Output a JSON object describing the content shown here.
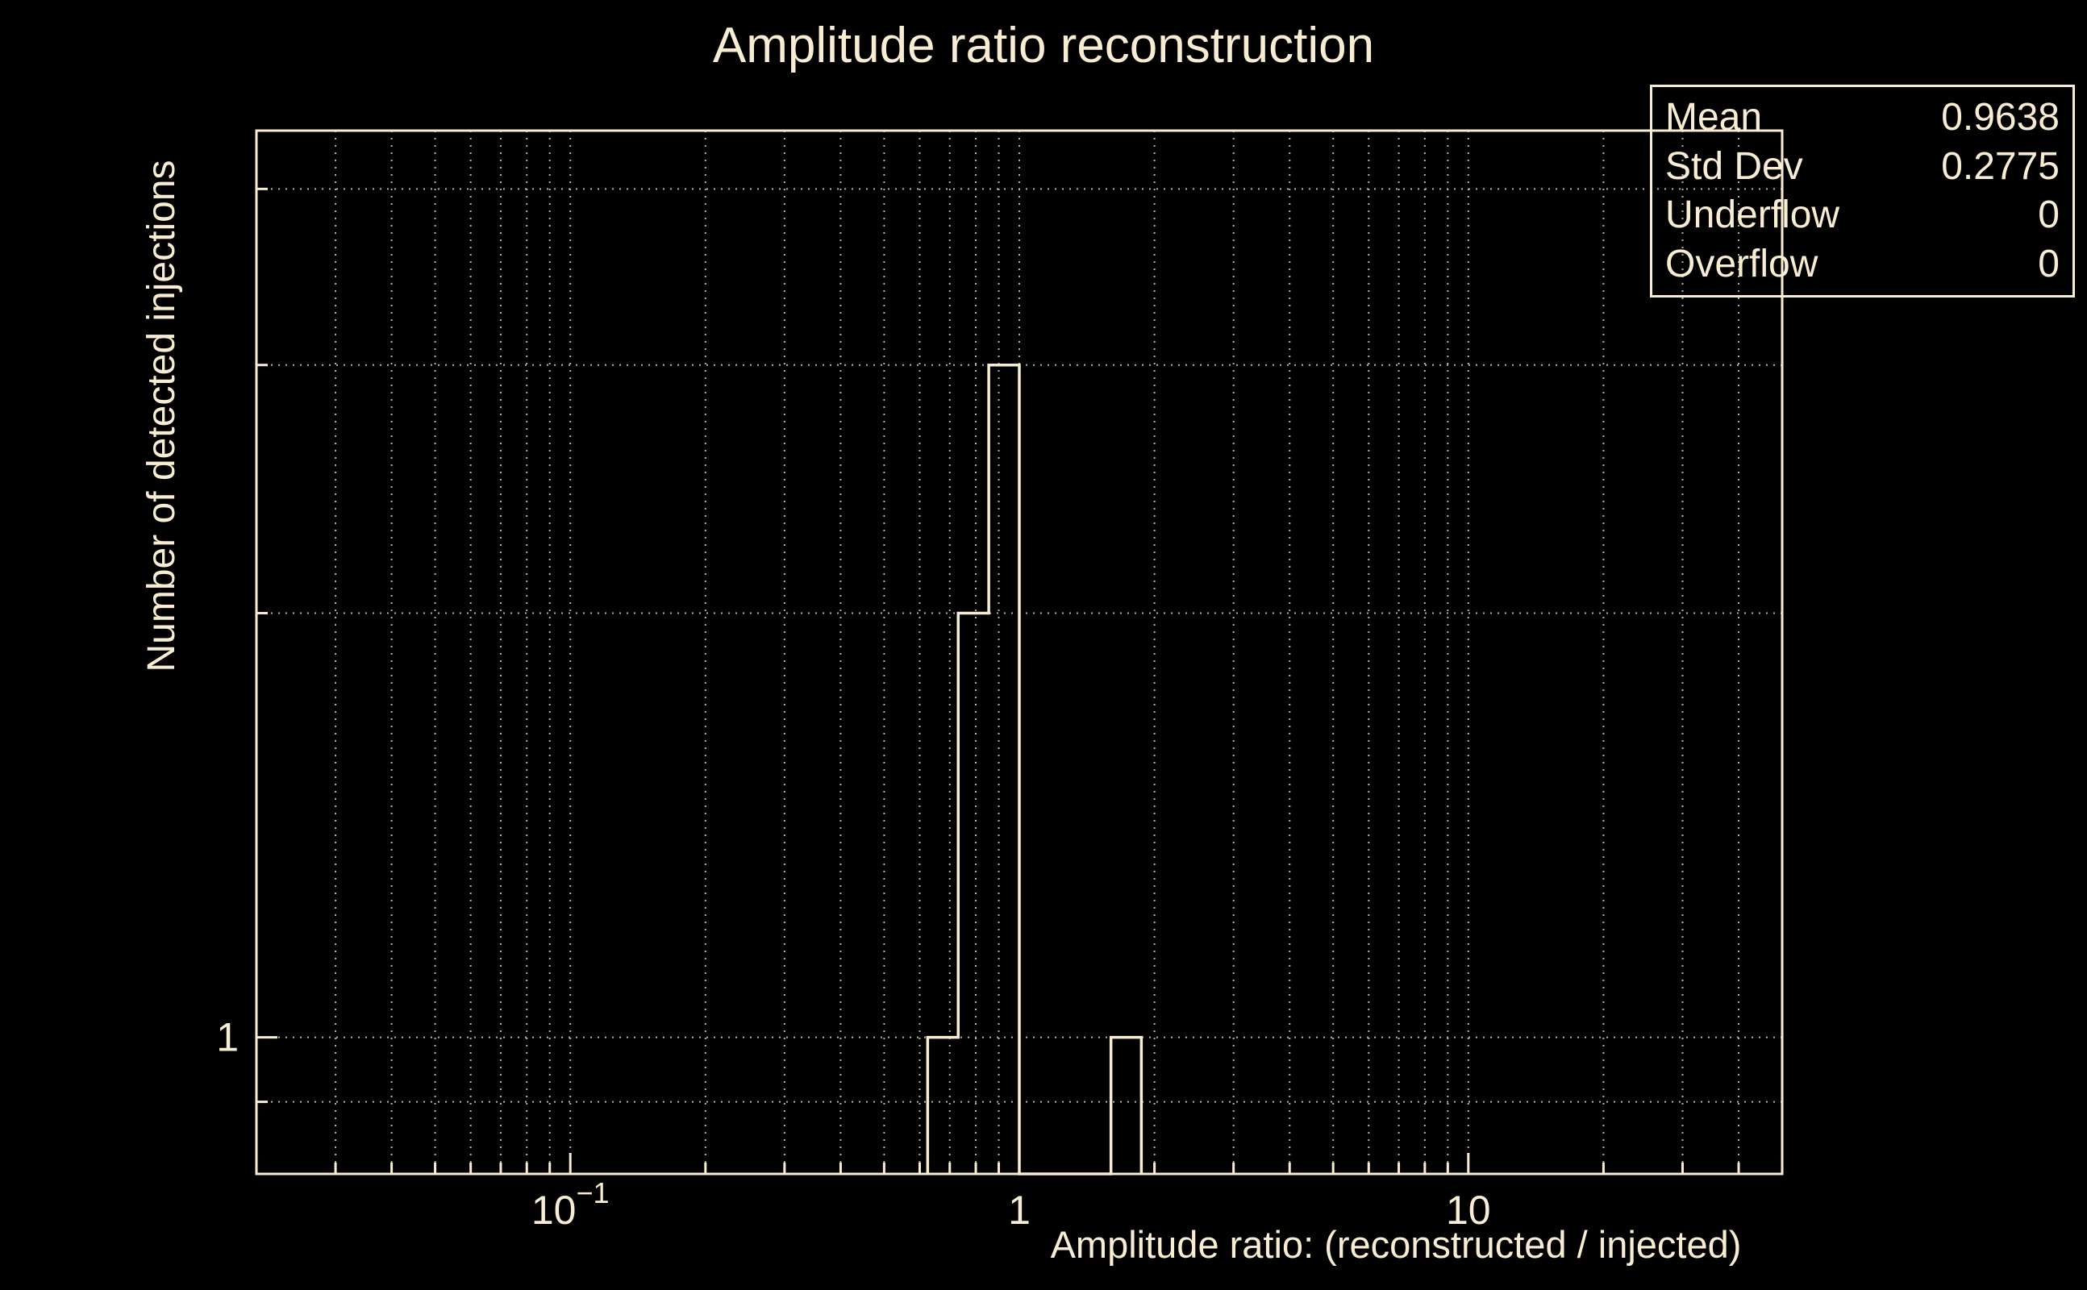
{
  "colors": {
    "background": "#000000",
    "foreground": "#f8edd3"
  },
  "chart_data": {
    "type": "histogram-step",
    "title": "Amplitude ratio reconstruction",
    "xlabel": "Amplitude ratio: (reconstructed / injected)",
    "ylabel": "Number of detected injections",
    "x_scale": "log",
    "y_scale": "log",
    "x_range": [
      0.02,
      50
    ],
    "y_range": [
      0.8,
      4.4
    ],
    "grid": true,
    "grid_style": "dotted",
    "bins": [
      {
        "x_low": 0.625,
        "x_high": 0.731,
        "count": 1
      },
      {
        "x_low": 0.731,
        "x_high": 0.855,
        "count": 2
      },
      {
        "x_low": 0.855,
        "x_high": 1.0,
        "count": 3
      },
      {
        "x_low": 1.6,
        "x_high": 1.87,
        "count": 1
      }
    ],
    "x_ticks": [
      {
        "value": 0.1,
        "base": "10",
        "exp": "−1"
      },
      {
        "value": 1,
        "base": "1",
        "exp": ""
      },
      {
        "value": 10,
        "base": "10",
        "exp": ""
      }
    ],
    "y_ticks": [
      {
        "value": 1,
        "label": "1"
      }
    ],
    "stats": {
      "position": "top-right",
      "rows": [
        {
          "label": "Mean",
          "value": "0.9638"
        },
        {
          "label": "Std Dev",
          "value": "0.2775"
        },
        {
          "label": "Underflow",
          "value": "0"
        },
        {
          "label": "Overflow",
          "value": "0"
        }
      ]
    }
  }
}
